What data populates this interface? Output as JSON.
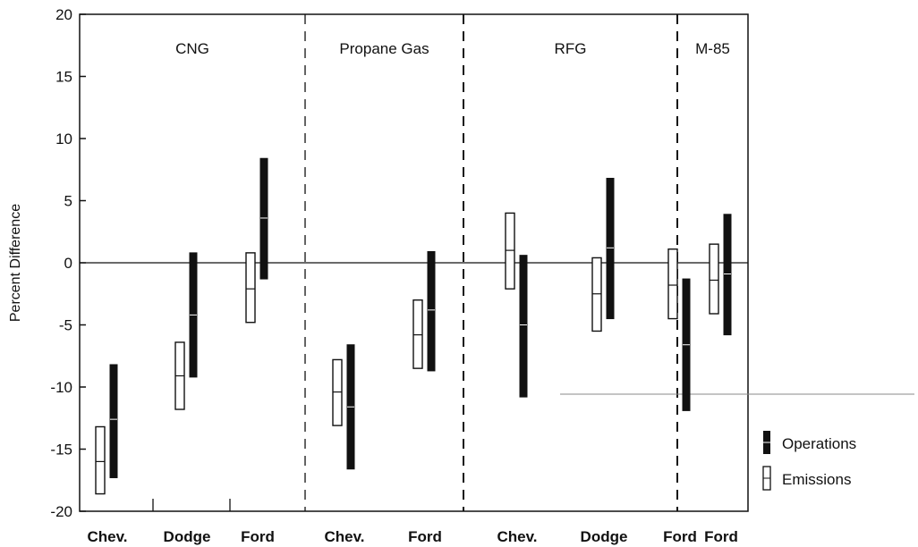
{
  "chart_data": {
    "type": "range-bar",
    "ylabel": "Percent Difference",
    "ylim": [
      -20,
      20
    ],
    "yticks": [
      20,
      15,
      10,
      5,
      0,
      -5,
      -10,
      -15,
      -20
    ],
    "groups": [
      {
        "label": "CNG",
        "categories": [
          "Chev.",
          "Dodge",
          "Ford"
        ]
      },
      {
        "label": "Propane Gas",
        "categories": [
          "Chev.",
          "Ford"
        ]
      },
      {
        "label": "RFG",
        "categories": [
          "Chev.",
          "Dodge",
          "Ford"
        ]
      },
      {
        "label": "M-85",
        "categories": [
          "Ford"
        ]
      }
    ],
    "series": [
      {
        "name": "Emissions",
        "color": "#ffffff",
        "values": [
          {
            "low": -18.6,
            "high": -13.2,
            "mid": -16.0
          },
          {
            "low": -11.8,
            "high": -6.4,
            "mid": -9.1
          },
          {
            "low": -4.8,
            "high": 0.8,
            "mid": -2.1
          },
          {
            "low": -13.1,
            "high": -7.8,
            "mid": -10.4
          },
          {
            "low": -8.5,
            "high": -3.0,
            "mid": -5.8
          },
          {
            "low": -2.1,
            "high": 4.0,
            "mid": 1.0
          },
          {
            "low": -5.5,
            "high": 0.4,
            "mid": -2.5
          },
          {
            "low": -4.5,
            "high": 1.1,
            "mid": -1.8
          },
          {
            "low": -4.1,
            "high": 1.5,
            "mid": -1.4
          }
        ]
      },
      {
        "name": "Operations",
        "color": "#111111",
        "values": [
          {
            "low": -17.3,
            "high": -8.2,
            "mid": -12.6
          },
          {
            "low": -9.2,
            "high": 0.8,
            "mid": -4.2
          },
          {
            "low": -1.3,
            "high": 8.4,
            "mid": 3.6
          },
          {
            "low": -16.6,
            "high": -6.6,
            "mid": -11.6
          },
          {
            "low": -8.7,
            "high": 0.9,
            "mid": -3.8
          },
          {
            "low": -10.8,
            "high": 0.6,
            "mid": -5.0
          },
          {
            "low": -4.5,
            "high": 6.8,
            "mid": 1.2
          },
          {
            "low": -11.9,
            "high": -1.3,
            "mid": -6.6
          },
          {
            "low": -5.8,
            "high": 3.9,
            "mid": -0.9
          }
        ]
      }
    ],
    "legend": {
      "position": "right",
      "items": [
        "Operations",
        "Emissions"
      ]
    }
  }
}
